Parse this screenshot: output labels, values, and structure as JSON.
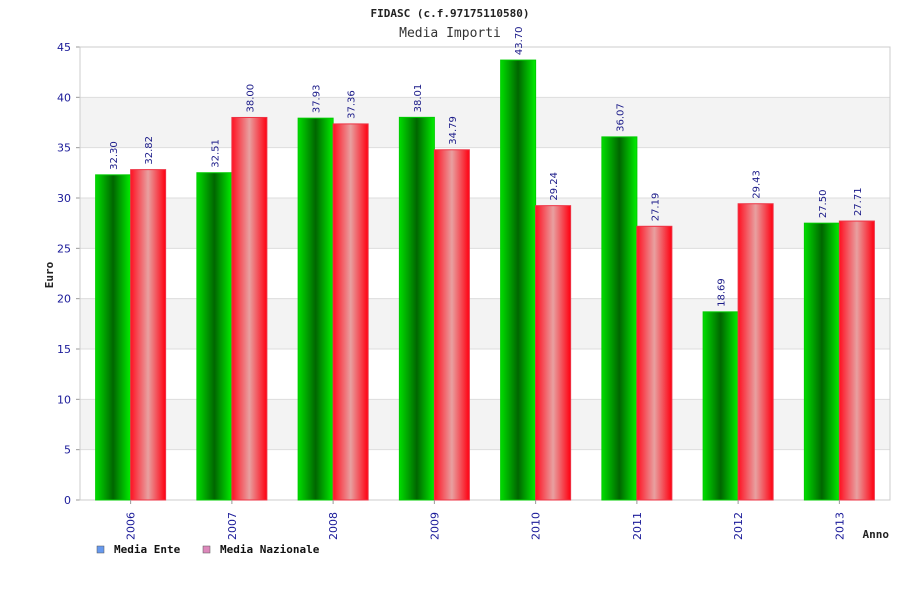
{
  "chart_data": {
    "type": "bar",
    "title": "FIDASC (c.f.97175110580)",
    "subtitle": "Media Importi",
    "xlabel": "Anno",
    "ylabel": "Euro",
    "ylim": [
      0,
      45
    ],
    "yticks": [
      0,
      5,
      10,
      15,
      20,
      25,
      30,
      35,
      40,
      45
    ],
    "categories": [
      "2006",
      "2007",
      "2008",
      "2009",
      "2010",
      "2011",
      "2012",
      "2013"
    ],
    "series": [
      {
        "name": "Media Ente",
        "values": [
          32.3,
          32.51,
          37.93,
          38.01,
          43.7,
          36.07,
          18.69,
          27.5
        ],
        "labels": [
          "32.30",
          "32.51",
          "37.93",
          "38.01",
          "43.70",
          "36.07",
          "18.69",
          "27.50"
        ],
        "color": "#00c000",
        "legend_color": "#6699ee"
      },
      {
        "name": "Media Nazionale",
        "values": [
          32.82,
          38.0,
          37.36,
          34.79,
          29.24,
          27.19,
          29.43,
          27.71
        ],
        "labels": [
          "32.82",
          "38.00",
          "37.36",
          "34.79",
          "29.24",
          "27.19",
          "29.43",
          "27.71"
        ],
        "color": "#ee1122",
        "legend_color": "#dd88bb"
      }
    ],
    "grid": true,
    "legend_position": "bottom-left"
  }
}
